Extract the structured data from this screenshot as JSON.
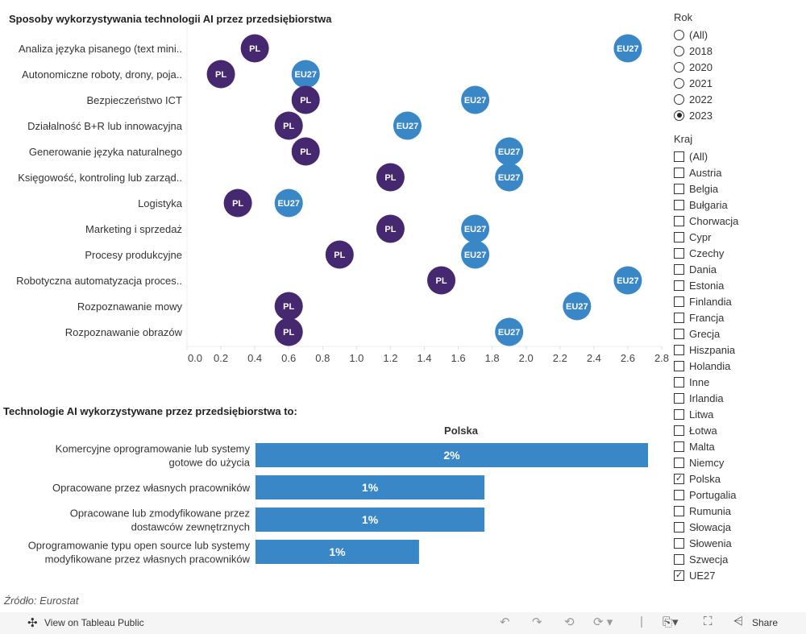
{
  "chart_data": [
    {
      "type": "scatter",
      "title": "Sposoby wykorzystywania technologii AI przez przedsiębiorstwa",
      "categories": [
        "Analiza języka pisanego (text mini..",
        "Autonomiczne roboty, drony, poja..",
        "Bezpieczeństwo ICT",
        "Działalność B+R lub innowacyjna",
        "Generowanie języka naturalnego",
        "Księgowość, kontroling lub zarząd..",
        "Logistyka",
        "Marketing i sprzedaż",
        "Procesy produkcyjne",
        "Robotyczna automatyzacja proces..",
        "Rozpoznawanie mowy",
        "Rozpoznawanie obrazów"
      ],
      "series": [
        {
          "name": "PL",
          "values": [
            0.4,
            0.2,
            0.7,
            0.6,
            0.7,
            1.2,
            0.3,
            1.2,
            0.9,
            1.5,
            0.6,
            0.6
          ],
          "color": "#45286f"
        },
        {
          "name": "EU27",
          "values": [
            2.6,
            0.7,
            1.7,
            1.3,
            1.9,
            1.9,
            0.6,
            1.7,
            1.7,
            2.6,
            2.3,
            1.9
          ],
          "color": "#3a87c8"
        }
      ],
      "xlim": [
        0,
        2.8
      ],
      "xticks": [
        "0.0",
        "0.2",
        "0.4",
        "0.6",
        "0.8",
        "1.0",
        "1.2",
        "1.4",
        "1.6",
        "1.8",
        "2.0",
        "2.2",
        "2.4",
        "2.6",
        "2.8"
      ],
      "grid": false
    },
    {
      "type": "bar",
      "title": "Technologie AI wykorzystywane przez przedsiębiorstwa to:",
      "column_header": "Polska",
      "categories": [
        [
          "Komercyjne oprogramowanie lub systemy",
          "gotowe do użycia"
        ],
        [
          "Opracowane przez własnych pracowników"
        ],
        [
          "Opracowane lub zmodyfikowane przez",
          "dostawców zewnętrznych"
        ],
        [
          "Oprogramowanie typu open source lub systemy",
          "modyfikowane przez własnych pracowników"
        ]
      ],
      "values": [
        2.4,
        1.4,
        1.4,
        1.0
      ],
      "labels": [
        "2%",
        "1%",
        "1%",
        "1%"
      ],
      "color": "#3a87c8"
    }
  ],
  "filters": {
    "year_label": "Rok",
    "years": [
      "(All)",
      "2018",
      "2020",
      "2021",
      "2022",
      "2023"
    ],
    "year_selected": "2023",
    "country_label": "Kraj",
    "countries": [
      "(All)",
      "Austria",
      "Belgia",
      "Bułgaria",
      "Chorwacja",
      "Cypr",
      "Czechy",
      "Dania",
      "Estonia",
      "Finlandia",
      "Francja",
      "Grecja",
      "Hiszpania",
      "Holandia",
      "Inne",
      "Irlandia",
      "Litwa",
      "Łotwa",
      "Malta",
      "Niemcy",
      "Polska",
      "Portugalia",
      "Rumunia",
      "Słowacja",
      "Słowenia",
      "Szwecja",
      "UE27"
    ],
    "countries_checked": [
      "Polska",
      "UE27"
    ]
  },
  "source": "Źródło: Eurostat",
  "footer": {
    "view_label": "View on Tableau Public",
    "share_label": "Share"
  }
}
